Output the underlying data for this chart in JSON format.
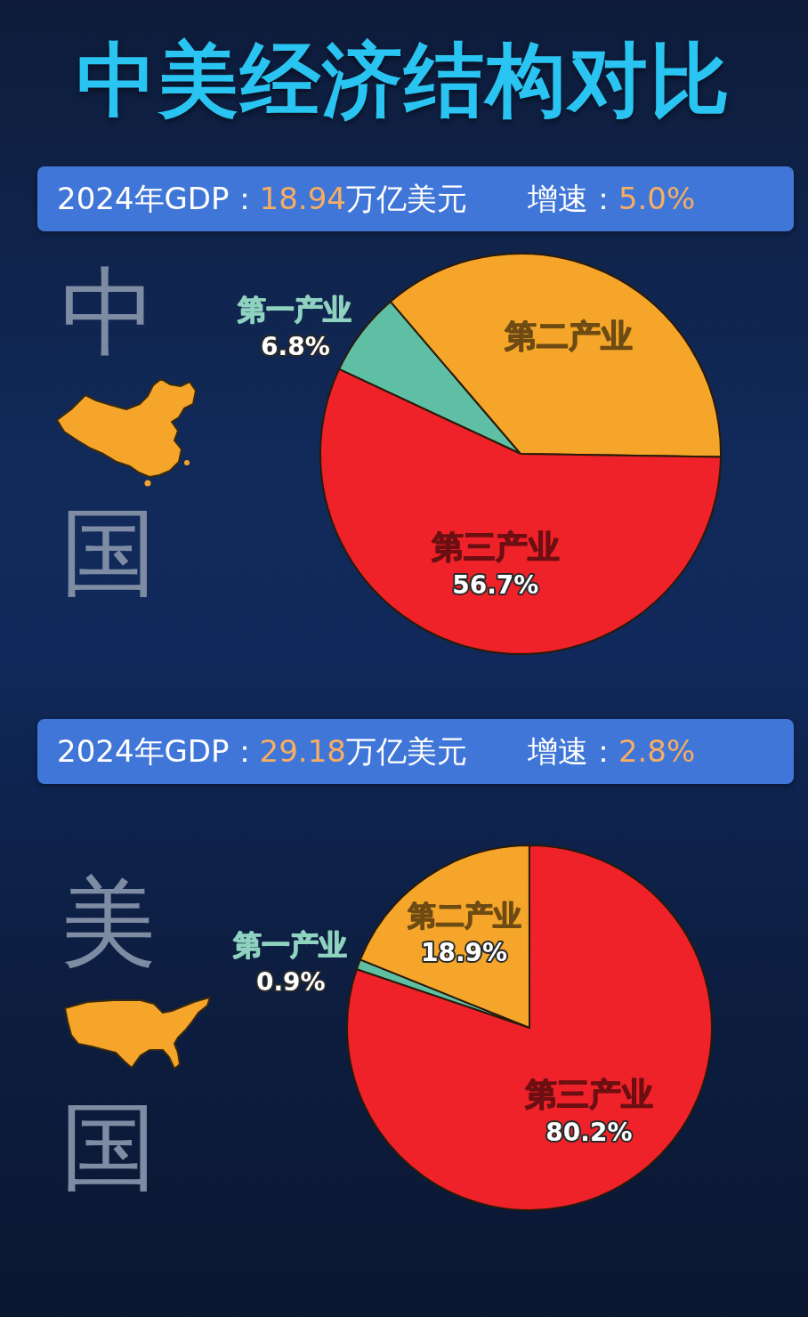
{
  "chart_data": [
    {
      "type": "pie",
      "title": "中美经济结构对比",
      "subtitle": "2024年GDP：18.94万亿美元　　增速：5.0%",
      "annotations": [
        "中国"
      ],
      "categories": [
        "第一产业",
        "第二产业",
        "第三产业"
      ],
      "values": [
        6.8,
        36.5,
        56.7
      ],
      "colors": [
        "#5fbfa4",
        "#f5a62a",
        "#ef2229"
      ],
      "value_labels": [
        "6.8%",
        null,
        "56.7%"
      ]
    },
    {
      "type": "pie",
      "subtitle": "2024年GDP：29.18万亿美元　　增速：2.8%",
      "annotations": [
        "美国"
      ],
      "categories": [
        "第一产业",
        "第二产业",
        "第三产业"
      ],
      "values": [
        0.9,
        18.9,
        80.2
      ],
      "colors": [
        "#5fbfa4",
        "#f5a62a",
        "#ef2229"
      ],
      "value_labels": [
        "0.9%",
        "18.9%",
        "80.2%"
      ]
    }
  ]
}
